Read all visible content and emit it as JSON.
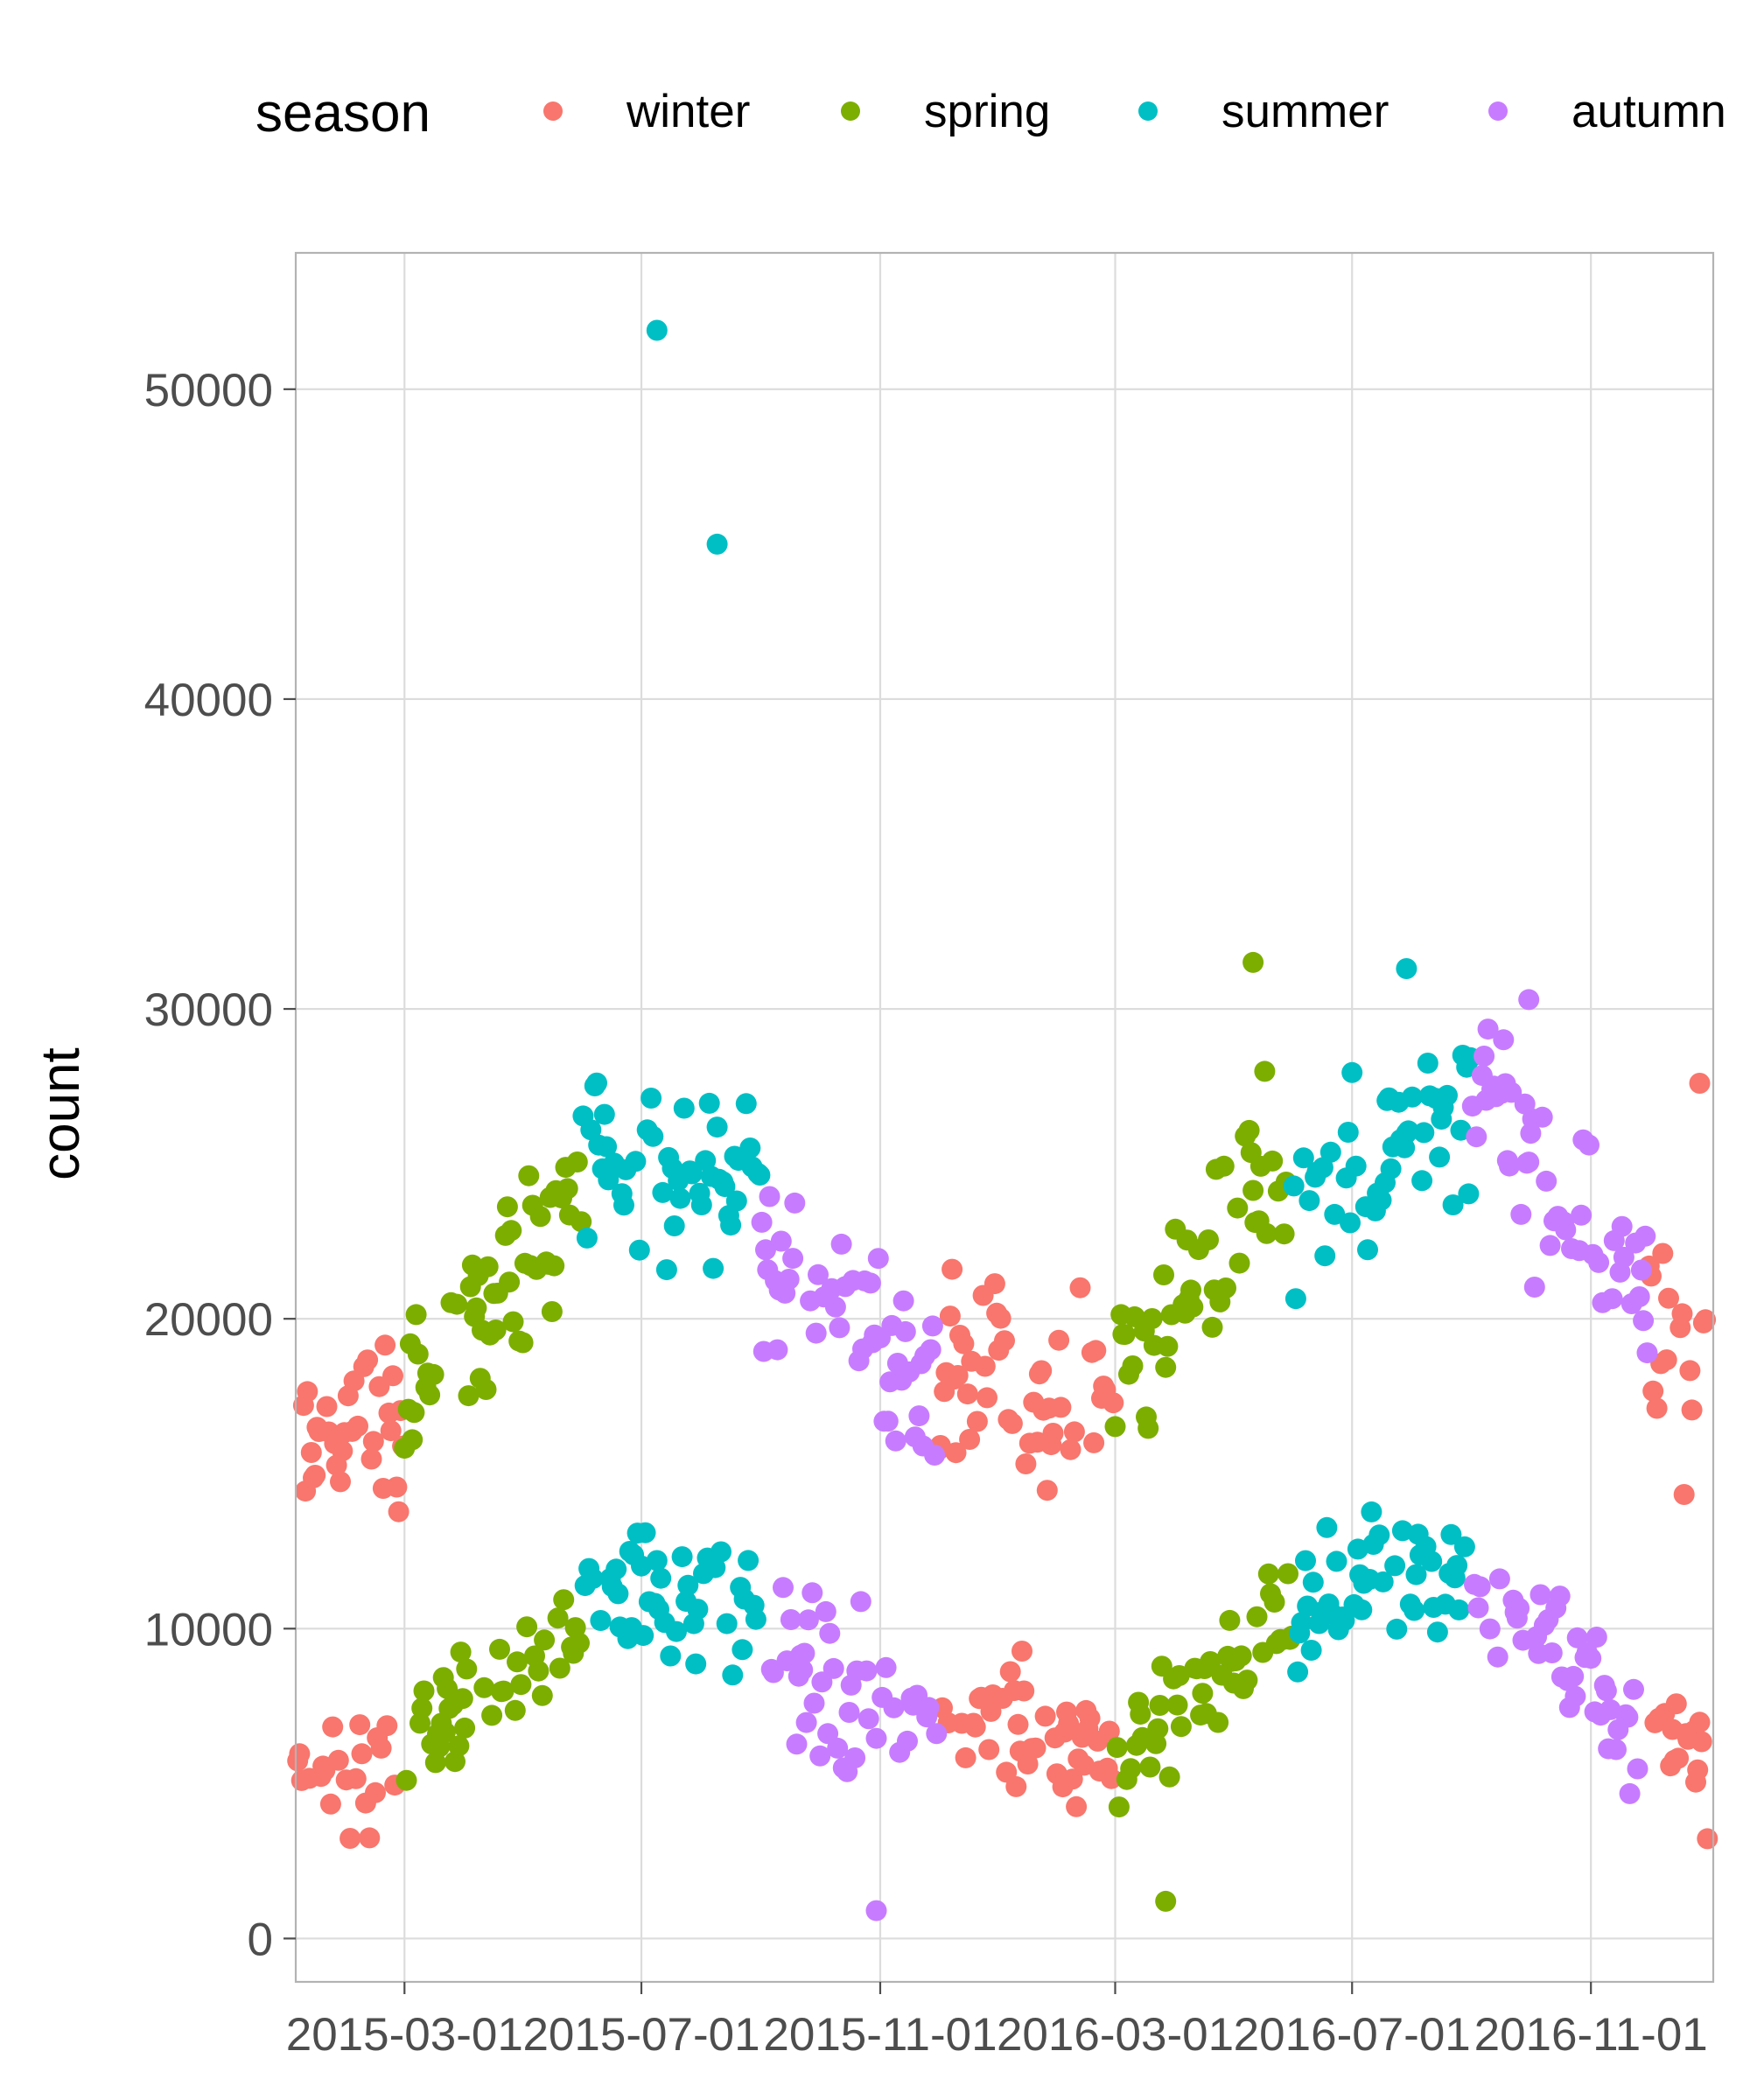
{
  "chart_data": {
    "type": "scatter",
    "xlabel": "",
    "ylabel": "count",
    "x_axis_type": "date",
    "xlim": [
      "2015-01-04",
      "2017-01-03"
    ],
    "ylim": [
      -1400,
      54400
    ],
    "x_ticks": [
      "2015-03-01",
      "2015-07-01",
      "2015-11-01",
      "2016-03-01",
      "2016-07-01",
      "2016-11-01"
    ],
    "y_ticks": [
      0,
      10000,
      20000,
      30000,
      40000,
      50000
    ],
    "grid": true,
    "legend": {
      "title": "season",
      "position": "top",
      "entries": [
        "winter",
        "spring",
        "summer",
        "autumn"
      ]
    },
    "series": [
      {
        "name": "winter",
        "color": "#F8766D"
      },
      {
        "name": "spring",
        "color": "#7CAE00"
      },
      {
        "name": "summer",
        "color": "#00BFC4"
      },
      {
        "name": "autumn",
        "color": "#C77CFF"
      }
    ],
    "notable_points": [
      {
        "series": "summer",
        "x": "2015-07-09",
        "y": 51900
      },
      {
        "series": "summer",
        "x": "2015-08-09",
        "y": 45000
      },
      {
        "series": "spring",
        "x": "2016-05-11",
        "y": 31500
      },
      {
        "series": "summer",
        "x": "2016-07-29",
        "y": 31300
      },
      {
        "series": "autumn",
        "x": "2016-09-30",
        "y": 30300
      },
      {
        "series": "winter",
        "x": "2016-12-27",
        "y": 27600
      },
      {
        "series": "autumn",
        "x": "2015-10-30",
        "y": 900
      },
      {
        "series": "spring",
        "x": "2016-03-27",
        "y": 1200
      }
    ],
    "trends": [
      {
        "series": "winter",
        "segments": [
          {
            "start": "2015-01-05",
            "end": "2015-02-28",
            "high": [
              16000,
              16500
            ],
            "low": [
              5000,
              5200
            ]
          },
          {
            "start": "2015-12-01",
            "end": "2016-02-29",
            "high": [
              18000,
              17500
            ],
            "low": [
              7500,
              6000
            ]
          },
          {
            "start": "2016-12-01",
            "end": "2016-12-31",
            "high": [
              20000,
              18500
            ],
            "low": [
              7000,
              6000
            ]
          }
        ]
      },
      {
        "series": "spring",
        "segments": [
          {
            "start": "2015-03-01",
            "end": "2015-05-31",
            "high": [
              18000,
              24000
            ],
            "low": [
              6000,
              9500
            ]
          },
          {
            "start": "2016-03-01",
            "end": "2016-05-31",
            "high": [
              18000,
              25500
            ],
            "low": [
              6000,
              10000
            ]
          }
        ]
      },
      {
        "series": "summer",
        "segments": [
          {
            "start": "2015-06-01",
            "end": "2015-08-31",
            "high": [
              25000,
              24500
            ],
            "low": [
              11000,
              11000
            ]
          },
          {
            "start": "2016-06-01",
            "end": "2016-08-31",
            "high": [
              24000,
              27000
            ],
            "low": [
              10500,
              12000
            ]
          }
        ]
      },
      {
        "series": "autumn",
        "segments": [
          {
            "start": "2015-09-01",
            "end": "2015-11-30",
            "high": [
              23000,
              18000
            ],
            "low": [
              9000,
              7000
            ]
          },
          {
            "start": "2016-09-01",
            "end": "2016-11-30",
            "high": [
              27000,
              20500
            ],
            "low": [
              12000,
              6500
            ]
          }
        ]
      }
    ]
  }
}
